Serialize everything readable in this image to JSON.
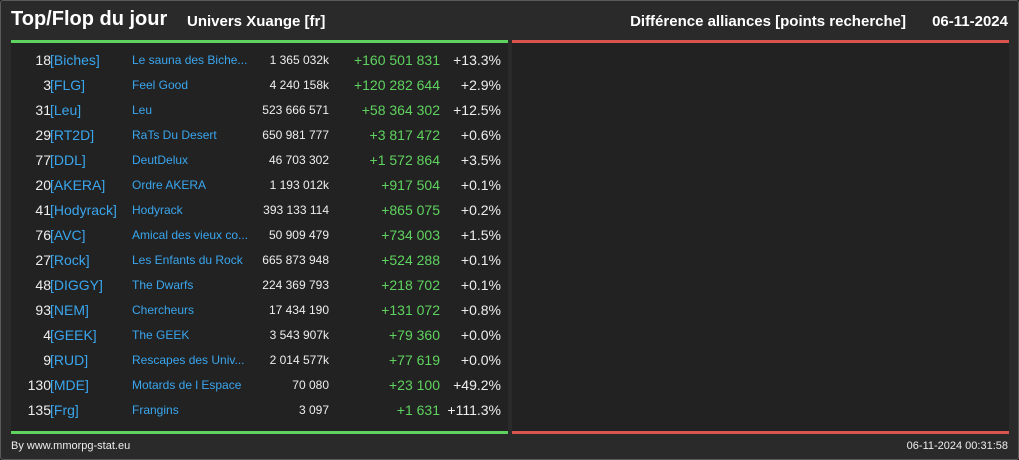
{
  "header": {
    "title": "Top/Flop du jour",
    "universe": "Univers Xuange [fr]",
    "difference_label": "Différence alliances [points recherche]",
    "date": "06-11-2024"
  },
  "rows": [
    {
      "rank": "18",
      "tag": "[Biches]",
      "name": "Le sauna des Biche...",
      "points": "1 365 032k",
      "diff": "+160 501 831",
      "pct": "+13.3%"
    },
    {
      "rank": "3",
      "tag": "[FLG]",
      "name": "Feel Good",
      "points": "4 240 158k",
      "diff": "+120 282 644",
      "pct": "+2.9%"
    },
    {
      "rank": "31",
      "tag": "[Leu]",
      "name": "Leu",
      "points": "523 666 571",
      "diff": "+58 364 302",
      "pct": "+12.5%"
    },
    {
      "rank": "29",
      "tag": "[RT2D]",
      "name": "RaTs Du Desert",
      "points": "650 981 777",
      "diff": "+3 817 472",
      "pct": "+0.6%"
    },
    {
      "rank": "77",
      "tag": "[DDL]",
      "name": "DeutDelux",
      "points": "46 703 302",
      "diff": "+1 572 864",
      "pct": "+3.5%"
    },
    {
      "rank": "20",
      "tag": "[AKERA]",
      "name": "Ordre AKERA",
      "points": "1 193 012k",
      "diff": "+917 504",
      "pct": "+0.1%"
    },
    {
      "rank": "41",
      "tag": "[Hodyrack]",
      "name": "Hodyrack",
      "points": "393 133 114",
      "diff": "+865 075",
      "pct": "+0.2%"
    },
    {
      "rank": "76",
      "tag": "[AVC]",
      "name": "Amical des vieux co...",
      "points": "50 909 479",
      "diff": "+734 003",
      "pct": "+1.5%"
    },
    {
      "rank": "27",
      "tag": "[Rock]",
      "name": "Les Enfants du Rock",
      "points": "665 873 948",
      "diff": "+524 288",
      "pct": "+0.1%"
    },
    {
      "rank": "48",
      "tag": "[DIGGY]",
      "name": "The Dwarfs",
      "points": "224 369 793",
      "diff": "+218 702",
      "pct": "+0.1%"
    },
    {
      "rank": "93",
      "tag": "[NEM]",
      "name": "Chercheurs",
      "points": "17 434 190",
      "diff": "+131 072",
      "pct": "+0.8%"
    },
    {
      "rank": "4",
      "tag": "[GEEK]",
      "name": "The GEEK",
      "points": "3 543 907k",
      "diff": "+79 360",
      "pct": "+0.0%"
    },
    {
      "rank": "9",
      "tag": "[RUD]",
      "name": "Rescapes des Univ...",
      "points": "2 014 577k",
      "diff": "+77 619",
      "pct": "+0.0%"
    },
    {
      "rank": "130",
      "tag": "[MDE]",
      "name": "Motards de l Espace",
      "points": "70 080",
      "diff": "+23 100",
      "pct": "+49.2%"
    },
    {
      "rank": "135",
      "tag": "[Frg]",
      "name": "Frangins",
      "points": "3 097",
      "diff": "+1 631",
      "pct": "+111.3%"
    }
  ],
  "footer": {
    "credit": "By www.mmorpg-stat.eu",
    "timestamp": "06-11-2024 00:31:58"
  },
  "colors": {
    "top_accent": "#5fd35f",
    "flop_accent": "#d9534f",
    "link": "#3aa6ee"
  }
}
